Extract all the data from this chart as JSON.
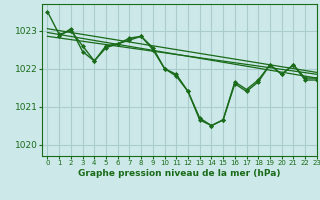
{
  "background_color": "#cce8e8",
  "grid_color": "#aacccc",
  "line_color": "#1a6b1a",
  "title": "Graphe pression niveau de la mer (hPa)",
  "xlim": [
    -0.5,
    23
  ],
  "ylim": [
    1019.7,
    1023.7
  ],
  "yticks": [
    1020,
    1021,
    1022,
    1023
  ],
  "xticks": [
    0,
    1,
    2,
    3,
    4,
    5,
    6,
    7,
    8,
    9,
    10,
    11,
    12,
    13,
    14,
    15,
    16,
    17,
    18,
    19,
    20,
    21,
    22,
    23
  ],
  "series": [
    {
      "x": [
        0,
        1,
        2,
        3,
        4,
        5,
        6,
        7,
        8,
        9,
        10,
        11,
        12,
        13,
        14,
        15,
        16,
        17,
        18,
        19,
        20,
        21,
        22,
        23
      ],
      "y": [
        1023.5,
        1022.9,
        1023.0,
        1022.6,
        1022.2,
        1022.6,
        1022.65,
        1022.8,
        1022.85,
        1022.55,
        1022.0,
        1021.85,
        1021.4,
        1020.65,
        1020.5,
        1020.65,
        1021.65,
        1021.45,
        1021.7,
        1022.1,
        1021.85,
        1022.1,
        1021.75,
        1021.75
      ],
      "marker": "D",
      "markersize": 2.0,
      "linewidth": 1.0
    },
    {
      "x": [
        0,
        23
      ],
      "y": [
        1023.05,
        1021.9
      ],
      "marker": null,
      "markersize": 0,
      "linewidth": 0.9
    },
    {
      "x": [
        0,
        23
      ],
      "y": [
        1022.95,
        1021.75
      ],
      "marker": null,
      "markersize": 0,
      "linewidth": 0.9
    },
    {
      "x": [
        0,
        23
      ],
      "y": [
        1022.85,
        1021.85
      ],
      "marker": null,
      "markersize": 0,
      "linewidth": 0.9
    },
    {
      "x": [
        1,
        2,
        3,
        4,
        5,
        6,
        7,
        8,
        9,
        10,
        11,
        12,
        13,
        14,
        15,
        16,
        17,
        18,
        19,
        20,
        21,
        22,
        23
      ],
      "y": [
        1022.85,
        1023.05,
        1022.45,
        1022.2,
        1022.55,
        1022.65,
        1022.75,
        1022.85,
        1022.5,
        1022.0,
        1021.8,
        1021.4,
        1020.7,
        1020.5,
        1020.65,
        1021.6,
        1021.4,
        1021.65,
        1022.1,
        1021.85,
        1022.1,
        1021.7,
        1021.7
      ],
      "marker": "D",
      "markersize": 2.0,
      "linewidth": 1.0
    }
  ]
}
